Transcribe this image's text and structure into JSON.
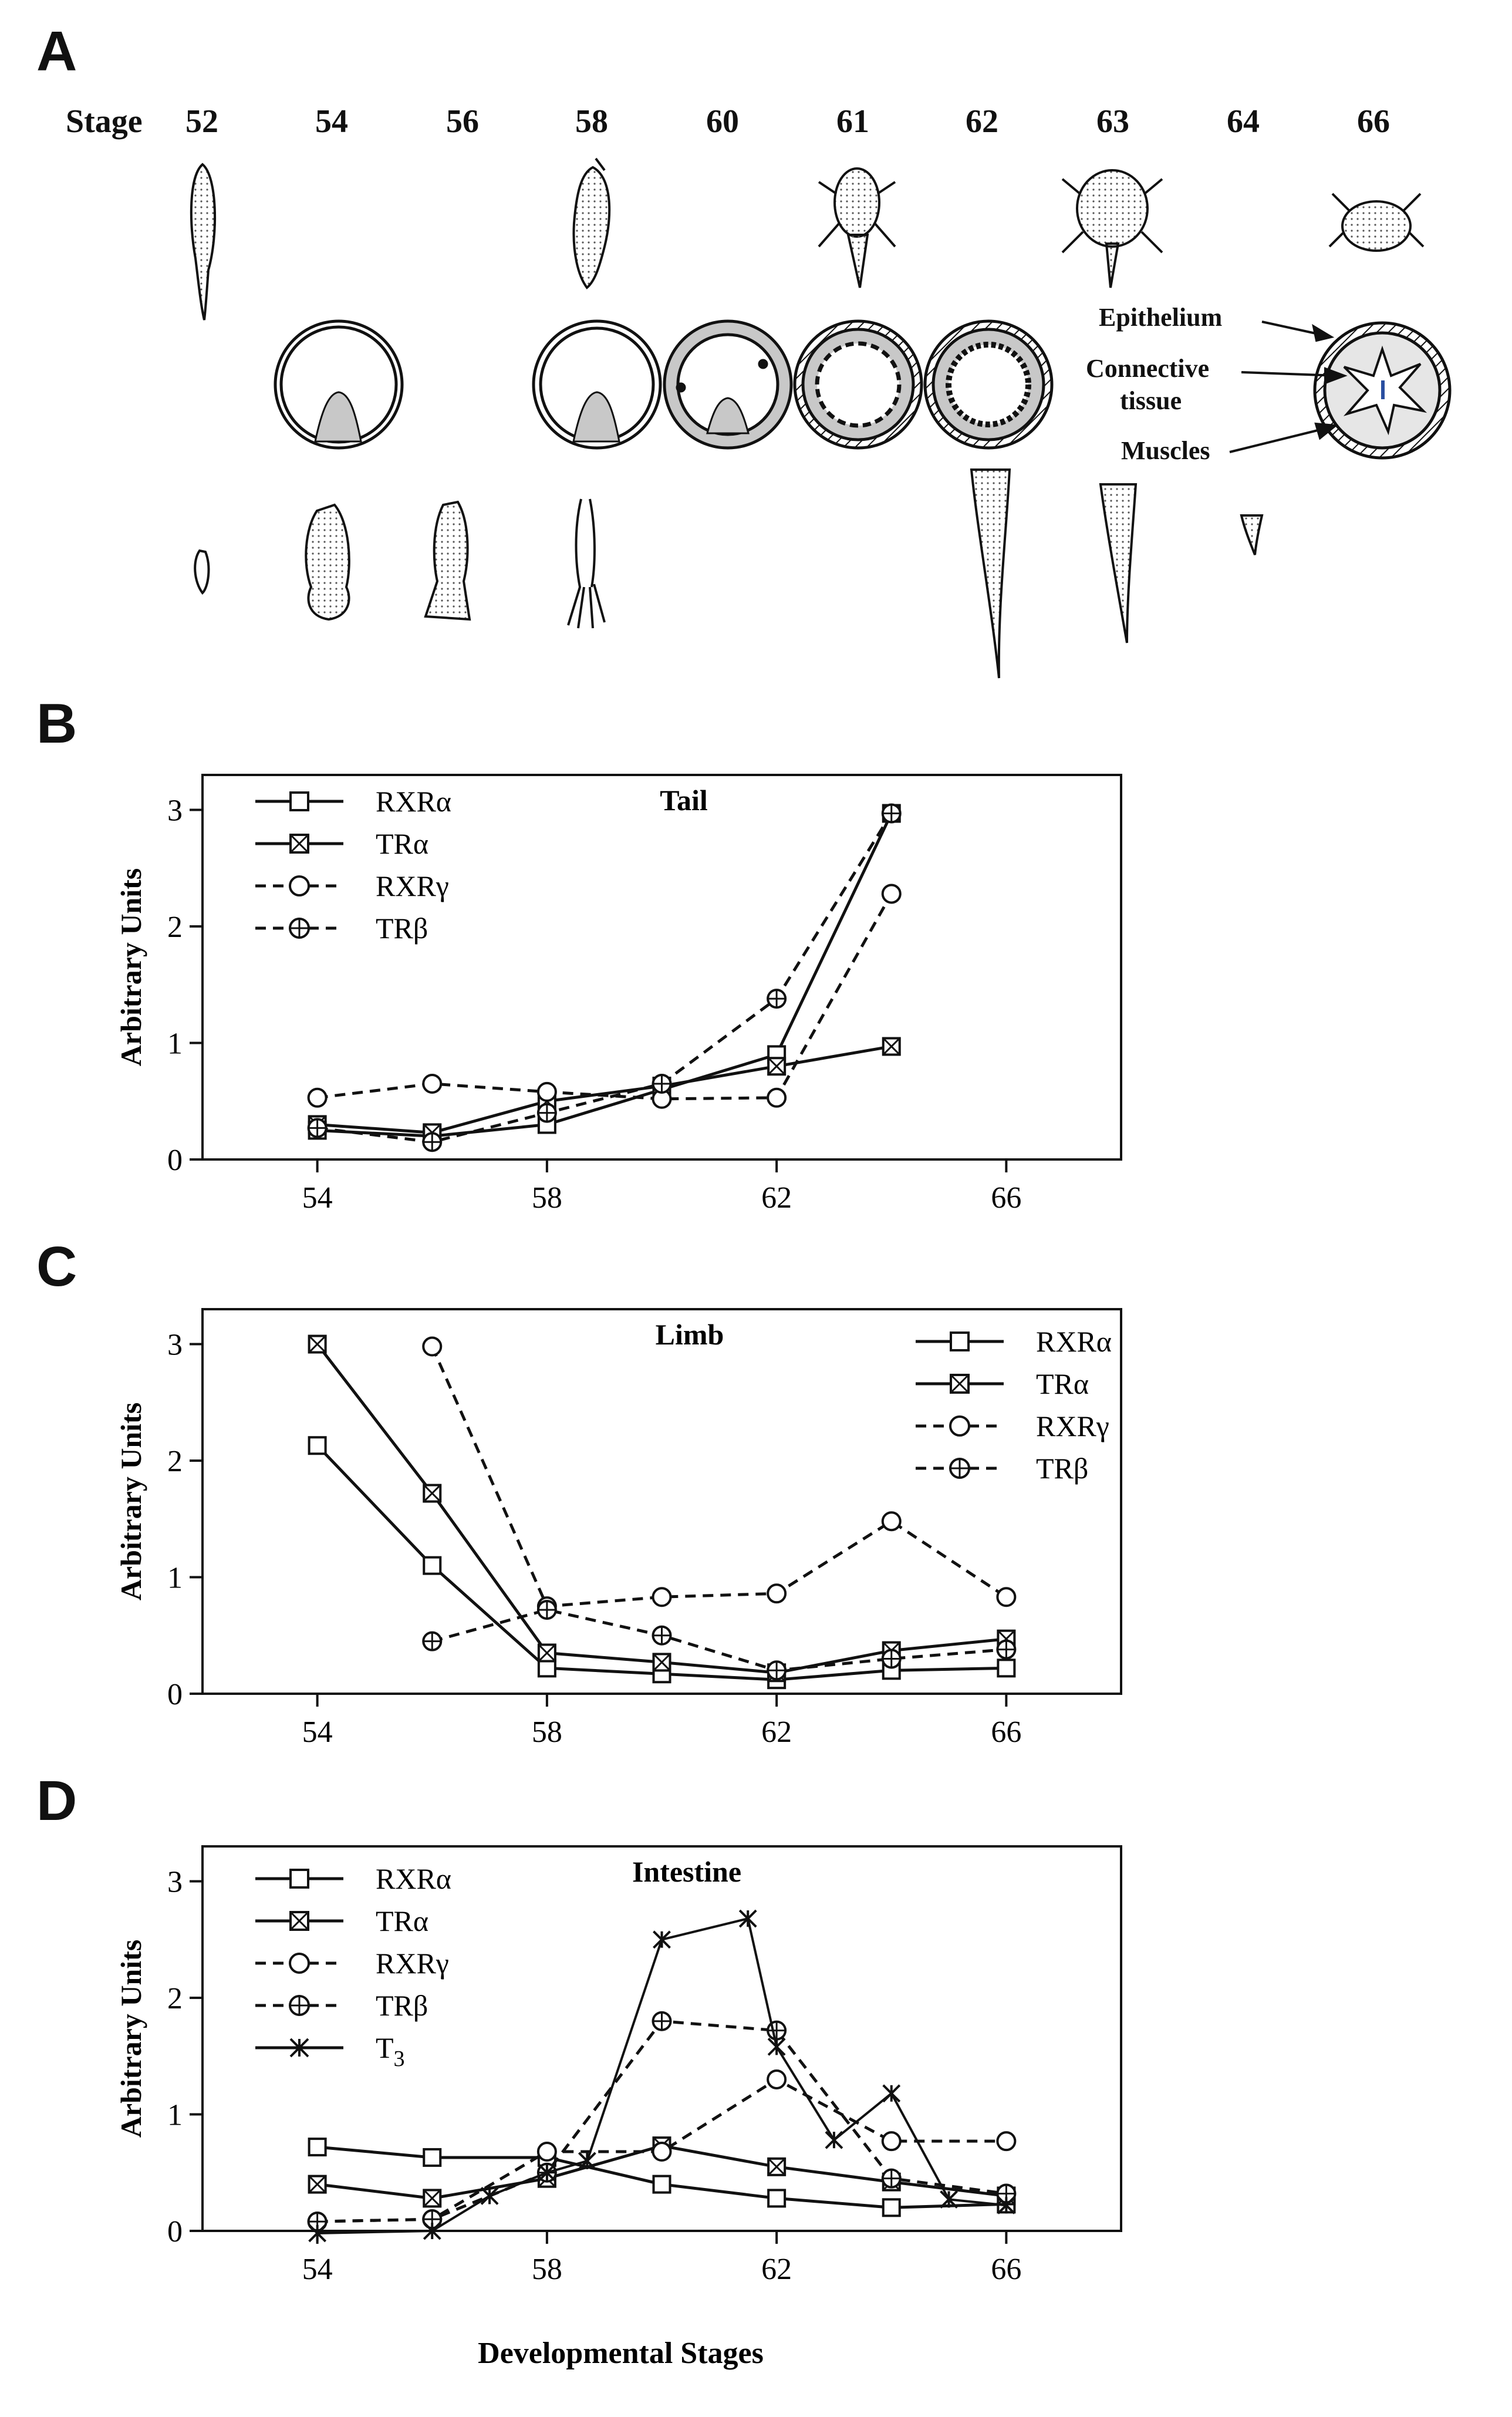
{
  "panels": {
    "a": "A",
    "b": "B",
    "c": "C",
    "d": "D"
  },
  "panel_a": {
    "stage_label": "Stage",
    "stages": [
      "52",
      "54",
      "56",
      "58",
      "60",
      "61",
      "62",
      "63",
      "64",
      "66"
    ],
    "annotations": {
      "epithelium": "Epithelium",
      "connective_line1": "Connective",
      "connective_line2": "tissue",
      "muscles": "Muscles"
    }
  },
  "colors": {
    "ink": "#111111",
    "shade": "#c8c8c8",
    "bg": "#ffffff"
  },
  "chart_data": [
    {
      "type": "line",
      "title": "Tail",
      "xlabel": "",
      "ylabel": "Arbitrary Units",
      "xlim": [
        52,
        68
      ],
      "ylim": [
        0,
        3.3
      ],
      "xticks": [
        54,
        58,
        62,
        66
      ],
      "yticks": [
        0,
        1,
        2,
        3
      ],
      "legend_position": "top-left",
      "series": [
        {
          "name": "RXRα",
          "marker": "square",
          "dash": "solid",
          "x": [
            54,
            56,
            58,
            60,
            62,
            64
          ],
          "y": [
            0.25,
            0.2,
            0.3,
            0.6,
            0.9,
            2.97
          ]
        },
        {
          "name": "TRα",
          "marker": "cross-square",
          "dash": "solid",
          "x": [
            54,
            56,
            58,
            60,
            62,
            64
          ],
          "y": [
            0.3,
            0.23,
            0.5,
            0.63,
            0.8,
            0.97
          ]
        },
        {
          "name": "RXRγ",
          "marker": "circle",
          "dash": "dashed",
          "x": [
            54,
            56,
            58,
            60,
            62,
            64
          ],
          "y": [
            0.53,
            0.65,
            0.58,
            0.52,
            0.53,
            2.28
          ]
        },
        {
          "name": "TRβ",
          "marker": "cross-circle",
          "dash": "dashed",
          "x": [
            54,
            56,
            58,
            60,
            62,
            64
          ],
          "y": [
            0.27,
            0.15,
            0.4,
            0.65,
            1.38,
            2.97
          ]
        }
      ]
    },
    {
      "type": "line",
      "title": "Limb",
      "xlabel": "",
      "ylabel": "Arbitrary Units",
      "xlim": [
        52,
        68
      ],
      "ylim": [
        0,
        3.3
      ],
      "xticks": [
        54,
        58,
        62,
        66
      ],
      "yticks": [
        0,
        1,
        2,
        3
      ],
      "legend_position": "top-right",
      "series": [
        {
          "name": "RXRα",
          "marker": "square",
          "dash": "solid",
          "x": [
            54,
            56,
            58,
            60,
            62,
            64,
            66
          ],
          "y": [
            2.13,
            1.1,
            0.22,
            0.17,
            0.12,
            0.2,
            0.22
          ]
        },
        {
          "name": "TRα",
          "marker": "cross-square",
          "dash": "solid",
          "x": [
            54,
            56,
            58,
            60,
            62,
            64,
            66
          ],
          "y": [
            3.0,
            1.72,
            0.35,
            0.27,
            0.18,
            0.37,
            0.47
          ]
        },
        {
          "name": "RXRγ",
          "marker": "circle",
          "dash": "dashed",
          "x": [
            56,
            58,
            60,
            62,
            64,
            66
          ],
          "y": [
            2.98,
            0.75,
            0.83,
            0.86,
            1.48,
            0.83
          ]
        },
        {
          "name": "TRβ",
          "marker": "cross-circle",
          "dash": "dashed",
          "x": [
            56,
            58,
            60,
            62,
            64,
            66
          ],
          "y": [
            0.45,
            0.72,
            0.5,
            0.2,
            0.3,
            0.38
          ]
        }
      ]
    },
    {
      "type": "line",
      "title": "Intestine",
      "xlabel": "Developmental Stages",
      "ylabel": "Arbitrary Units",
      "xlim": [
        52,
        68
      ],
      "ylim": [
        0,
        3.3
      ],
      "xticks": [
        54,
        58,
        62,
        66
      ],
      "yticks": [
        0,
        1,
        2,
        3
      ],
      "legend_position": "top-left",
      "series": [
        {
          "name": "RXRα",
          "marker": "square",
          "dash": "solid",
          "x": [
            54,
            56,
            58,
            60,
            62,
            64,
            66
          ],
          "y": [
            0.72,
            0.63,
            0.63,
            0.4,
            0.28,
            0.2,
            0.23
          ]
        },
        {
          "name": "TRα",
          "marker": "cross-square",
          "dash": "solid",
          "x": [
            54,
            56,
            58,
            60,
            62,
            64,
            66
          ],
          "y": [
            0.4,
            0.28,
            0.45,
            0.73,
            0.55,
            0.42,
            0.3
          ]
        },
        {
          "name": "RXRγ",
          "marker": "circle",
          "dash": "dashed",
          "x": [
            54,
            56,
            58,
            60,
            62,
            64,
            66
          ],
          "y": [
            0.08,
            0.1,
            0.68,
            0.68,
            1.3,
            0.77,
            0.77
          ]
        },
        {
          "name": "TRβ",
          "marker": "cross-circle",
          "dash": "dashed",
          "x": [
            54,
            56,
            58,
            60,
            62,
            64,
            66
          ],
          "y": [
            0.08,
            0.1,
            0.5,
            1.8,
            1.72,
            0.45,
            0.32
          ]
        },
        {
          "name": "T3",
          "marker": "asterisk",
          "dash": "solid",
          "x": [
            54,
            56,
            57,
            58,
            58.7,
            60,
            61.5,
            62,
            63,
            64,
            65,
            66
          ],
          "y": [
            -0.02,
            0.0,
            0.3,
            0.5,
            0.6,
            2.5,
            2.68,
            1.58,
            0.78,
            1.18,
            0.27,
            0.22
          ]
        }
      ]
    }
  ]
}
